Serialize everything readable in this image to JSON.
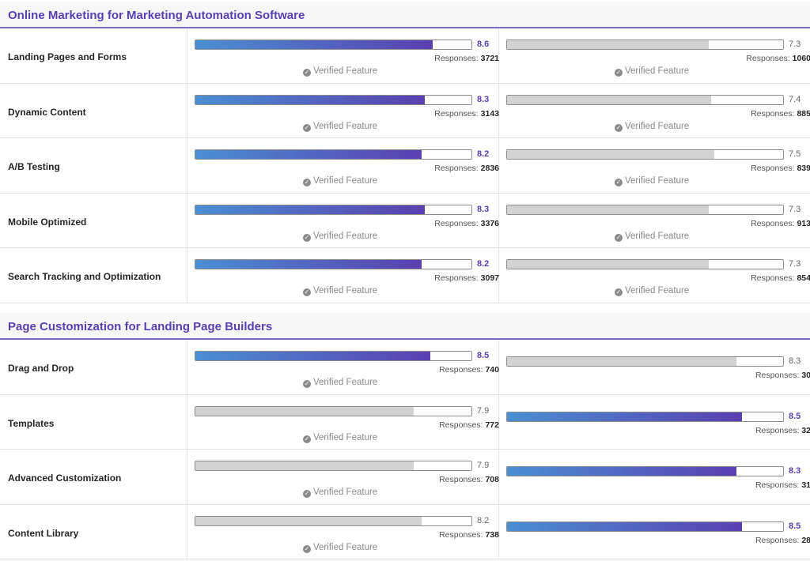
{
  "sections": [
    {
      "title": "Online Marketing for Marketing Automation Software",
      "rows": [
        {
          "label": "Landing Pages and Forms",
          "left": {
            "score": "8.6",
            "value": 8.6,
            "responses_label": "Responses:",
            "responses": "3721",
            "verified": "Verified Feature",
            "active": true
          },
          "right": {
            "score": "7.3",
            "value": 7.3,
            "responses_label": "Responses:",
            "responses": "1060",
            "verified": "Verified Feature",
            "active": false
          }
        },
        {
          "label": "Dynamic Content",
          "left": {
            "score": "8.3",
            "value": 8.3,
            "responses_label": "Responses:",
            "responses": "3143",
            "verified": "Verified Feature",
            "active": true
          },
          "right": {
            "score": "7.4",
            "value": 7.4,
            "responses_label": "Responses:",
            "responses": "885",
            "verified": "Verified Feature",
            "active": false
          }
        },
        {
          "label": "A/B Testing",
          "left": {
            "score": "8.2",
            "value": 8.2,
            "responses_label": "Responses:",
            "responses": "2836",
            "verified": "Verified Feature",
            "active": true
          },
          "right": {
            "score": "7.5",
            "value": 7.5,
            "responses_label": "Responses:",
            "responses": "839",
            "verified": "Verified Feature",
            "active": false
          }
        },
        {
          "label": "Mobile Optimized",
          "left": {
            "score": "8.3",
            "value": 8.3,
            "responses_label": "Responses:",
            "responses": "3376",
            "verified": "Verified Feature",
            "active": true
          },
          "right": {
            "score": "7.3",
            "value": 7.3,
            "responses_label": "Responses:",
            "responses": "913",
            "verified": "Verified Feature",
            "active": false
          }
        },
        {
          "label": "Search Tracking and Optimization",
          "left": {
            "score": "8.2",
            "value": 8.2,
            "responses_label": "Responses:",
            "responses": "3097",
            "verified": "Verified Feature",
            "active": true
          },
          "right": {
            "score": "7.3",
            "value": 7.3,
            "responses_label": "Responses:",
            "responses": "854",
            "verified": "Verified Feature",
            "active": false
          }
        }
      ]
    },
    {
      "title": "Page Customization for Landing Page Builders",
      "rows": [
        {
          "label": "Drag and Drop",
          "left": {
            "score": "8.5",
            "value": 8.5,
            "responses_label": "Responses:",
            "responses": "740",
            "verified": "Verified Feature",
            "active": true
          },
          "right": {
            "score": "8.3",
            "value": 8.3,
            "responses_label": "Responses:",
            "responses": "30",
            "verified": "",
            "active": false
          }
        },
        {
          "label": "Templates",
          "left": {
            "score": "7.9",
            "value": 7.9,
            "responses_label": "Responses:",
            "responses": "772",
            "verified": "Verified Feature",
            "active": false
          },
          "right": {
            "score": "8.5",
            "value": 8.5,
            "responses_label": "Responses:",
            "responses": "32",
            "verified": "",
            "active": true
          }
        },
        {
          "label": "Advanced Customization",
          "left": {
            "score": "7.9",
            "value": 7.9,
            "responses_label": "Responses:",
            "responses": "708",
            "verified": "Verified Feature",
            "active": false
          },
          "right": {
            "score": "8.3",
            "value": 8.3,
            "responses_label": "Responses:",
            "responses": "31",
            "verified": "",
            "active": true
          }
        },
        {
          "label": "Content Library",
          "left": {
            "score": "8.2",
            "value": 8.2,
            "responses_label": "Responses:",
            "responses": "738",
            "verified": "Verified Feature",
            "active": false
          },
          "right": {
            "score": "8.5",
            "value": 8.5,
            "responses_label": "Responses:",
            "responses": "28",
            "verified": "",
            "active": true
          }
        }
      ]
    }
  ],
  "score_max": 10,
  "colors": {
    "accent": "#5a3fb0",
    "bar_start": "#4a8fd2",
    "inactive_fill": "#d2d2d2"
  }
}
